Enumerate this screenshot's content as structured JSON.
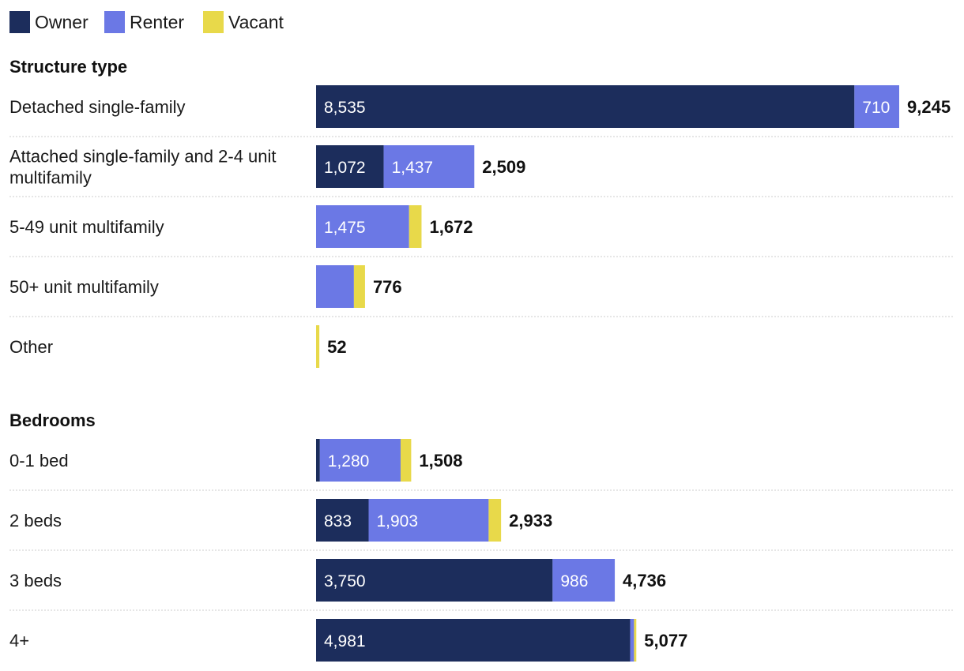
{
  "chart_data": {
    "type": "bar",
    "orientation": "horizontal",
    "stacked": true,
    "legend": {
      "position": "top-left",
      "entries": [
        {
          "name": "Owner",
          "color": "#1c2d5c"
        },
        {
          "name": "Renter",
          "color": "#6b78e5"
        },
        {
          "name": "Vacant",
          "color": "#e8d94a"
        }
      ]
    },
    "xlim": [
      0,
      9245
    ],
    "groups": [
      {
        "title": "Structure type",
        "categories": [
          {
            "label": "Detached single-family",
            "values": [
              8535,
              710,
              0
            ],
            "segment_labels": [
              "8,535",
              "710",
              ""
            ],
            "total_label": "9,245"
          },
          {
            "label": "Attached single-family and 2-4 unit multifamily",
            "values": [
              1072,
              1437,
              0
            ],
            "segment_labels": [
              "1,072",
              "1,437",
              ""
            ],
            "total_label": "2,509"
          },
          {
            "label": "5-49 unit multifamily",
            "values": [
              0,
              1475,
              197
            ],
            "segment_labels": [
              "",
              "1,475",
              ""
            ],
            "total_label": "1,672"
          },
          {
            "label": "50+ unit multifamily",
            "values": [
              0,
              600,
              176
            ],
            "segment_labels": [
              "",
              "",
              ""
            ],
            "total_label": "776"
          },
          {
            "label": "Other",
            "values": [
              0,
              0,
              52
            ],
            "segment_labels": [
              "",
              "",
              ""
            ],
            "total_label": "52"
          }
        ]
      },
      {
        "title": "Bedrooms",
        "categories": [
          {
            "label": "0-1 bed",
            "values": [
              60,
              1280,
              168
            ],
            "segment_labels": [
              "",
              "1,280",
              ""
            ],
            "total_label": "1,508"
          },
          {
            "label": "2 beds",
            "values": [
              833,
              1903,
              197
            ],
            "segment_labels": [
              "833",
              "1,903",
              ""
            ],
            "total_label": "2,933"
          },
          {
            "label": "3 beds",
            "values": [
              3750,
              986,
              0
            ],
            "segment_labels": [
              "3,750",
              "986",
              ""
            ],
            "total_label": "4,736"
          },
          {
            "label": "4+",
            "values": [
              4981,
              60,
              36
            ],
            "segment_labels": [
              "4,981",
              "",
              ""
            ],
            "total_label": "5,077"
          }
        ]
      }
    ]
  }
}
